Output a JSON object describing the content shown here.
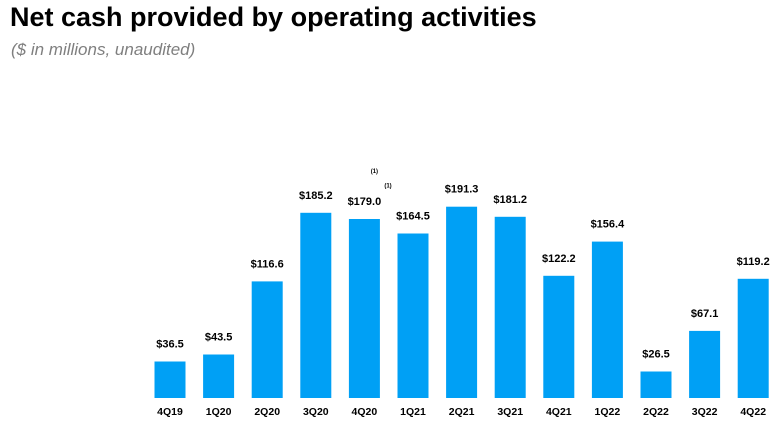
{
  "title": "Net cash provided by operating activities",
  "subtitle": "($ in millions, unaudited)",
  "colors": {
    "bar": "#00a0f5",
    "text": "#000000",
    "subtitle": "#7f7f7f"
  },
  "chart_data": {
    "type": "bar",
    "title": "Net cash provided by operating activities",
    "subtitle": "($ in millions, unaudited)",
    "xlabel": "",
    "ylabel": "",
    "grid": false,
    "categories": [
      "4Q19",
      "1Q20",
      "2Q20",
      "3Q20",
      "4Q20",
      "1Q21",
      "2Q21",
      "3Q21",
      "4Q21",
      "1Q22",
      "2Q22",
      "3Q22",
      "4Q22"
    ],
    "values": [
      36.5,
      43.5,
      116.6,
      185.2,
      179.0,
      164.5,
      191.3,
      181.2,
      122.2,
      156.4,
      26.5,
      67.1,
      119.2
    ],
    "data_labels": [
      "$36.5",
      "$43.5",
      "$116.6",
      "$185.2",
      "$179.0",
      "$164.5",
      "$191.3",
      "$181.2",
      "$122.2",
      "$156.4",
      "$26.5",
      "$67.1",
      "$119.2"
    ],
    "footnotes": [
      {
        "category": "4Q20",
        "text": "(1)"
      },
      {
        "category": "1Q21",
        "text": "(1)"
      }
    ],
    "ylim": [
      0,
      200
    ]
  }
}
